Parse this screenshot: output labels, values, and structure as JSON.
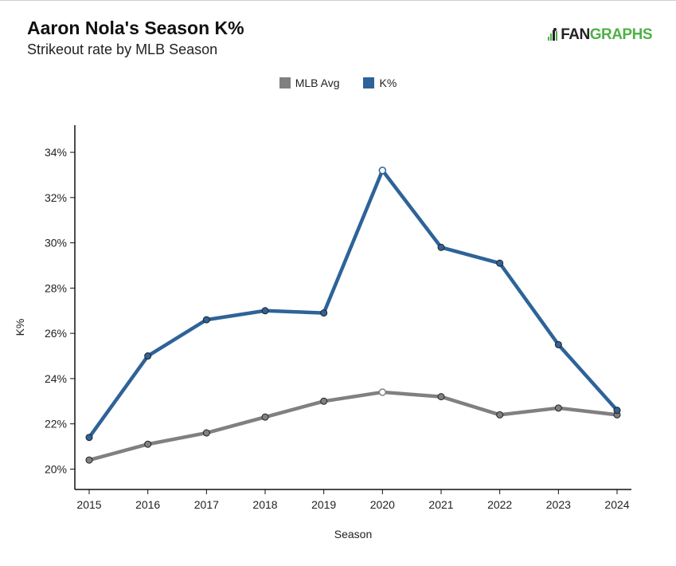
{
  "header": {
    "title": "Aaron Nola's Season K%",
    "subtitle": "Strikeout rate by MLB Season",
    "logo_prefix": "FAN",
    "logo_suffix": "GRAPHS"
  },
  "colors": {
    "mlb_avg": "#808080",
    "k_pct": "#2e6398",
    "axis": "#111111",
    "logo_green": "#4fb146"
  },
  "chart_data": {
    "type": "line",
    "title": "Aaron Nola's Season K%",
    "subtitle": "Strikeout rate by MLB Season",
    "xlabel": "Season",
    "ylabel": "K%",
    "x": [
      2015,
      2016,
      2017,
      2018,
      2019,
      2020,
      2021,
      2022,
      2023,
      2024
    ],
    "ylim": [
      19.1,
      35.2
    ],
    "yticks": [
      20,
      22,
      24,
      26,
      28,
      30,
      32,
      34
    ],
    "ytick_format": "%",
    "legend_position": "top-center",
    "grid": false,
    "series": [
      {
        "name": "MLB Avg",
        "color": "#808080",
        "values": [
          20.4,
          21.1,
          21.6,
          22.3,
          23.0,
          23.4,
          23.2,
          22.4,
          22.7,
          22.4
        ]
      },
      {
        "name": "K%",
        "color": "#2e6398",
        "values": [
          21.4,
          25.0,
          26.6,
          27.0,
          26.9,
          33.2,
          29.8,
          29.1,
          25.5,
          22.6
        ]
      }
    ],
    "highlight_year": 2020
  }
}
